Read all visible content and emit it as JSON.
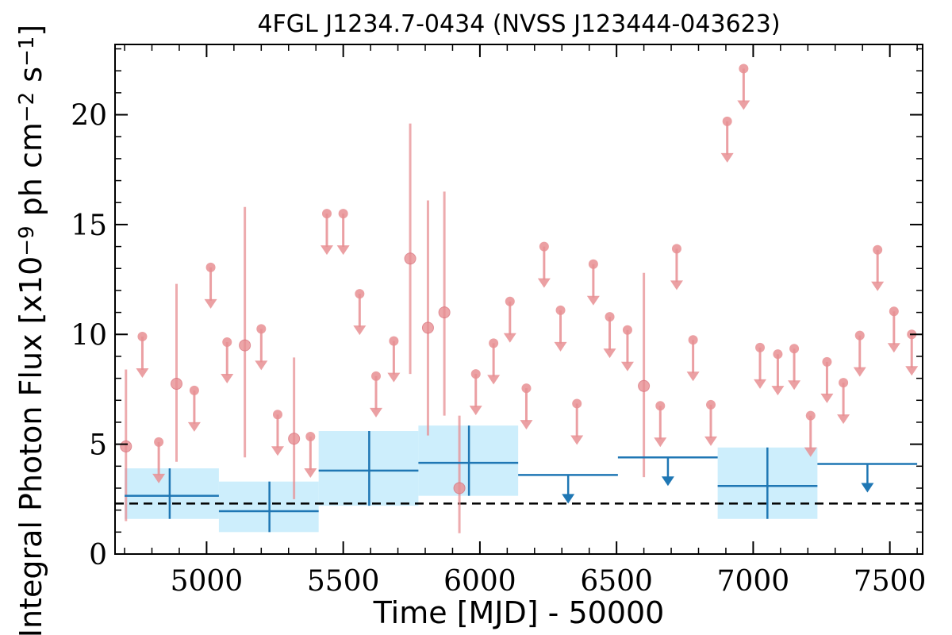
{
  "chart_data": {
    "type": "scatter",
    "title": "4FGL J1234.7-0434 (NVSS J123444-043623)",
    "xlabel": "Time [MJD] - 50000",
    "ylabel_base": "Integral Photon Flux [x10",
    "ylabel_exp1": "−9",
    "ylabel_mid": " ph cm",
    "ylabel_exp2": "−2",
    "ylabel_mid2": " s",
    "ylabel_exp3": "−1",
    "ylabel_end": "]",
    "xlim": [
      4665,
      7620
    ],
    "ylim": [
      0,
      23.2
    ],
    "xticks": [
      5000,
      5500,
      6000,
      6500,
      7000,
      7500
    ],
    "yticks": [
      0,
      5,
      10,
      15,
      20
    ],
    "baseline": 2.3,
    "colors": {
      "short_bins": "#e88f93",
      "long_bins": "#1f77b4",
      "long_bins_band": "#cdeefc",
      "baseline": "#000000"
    },
    "long_bins": [
      {
        "x0": 4700,
        "x1": 5045,
        "x": 4865,
        "y": 2.65,
        "ylo": 1.6,
        "yhi": 3.9
      },
      {
        "x0": 5045,
        "x1": 5410,
        "x": 5230,
        "y": 1.95,
        "ylo": 1.0,
        "yhi": 3.3
      },
      {
        "x0": 5410,
        "x1": 5775,
        "x": 5595,
        "y": 3.8,
        "ylo": 2.2,
        "yhi": 5.6
      },
      {
        "x0": 5775,
        "x1": 6140,
        "x": 5960,
        "y": 4.15,
        "ylo": 2.65,
        "yhi": 5.85
      },
      {
        "x0": 6140,
        "x1": 6505,
        "x": 6323,
        "y": 3.6,
        "upper_limit": true
      },
      {
        "x0": 6505,
        "x1": 6870,
        "x": 6688,
        "y": 4.4,
        "upper_limit": true
      },
      {
        "x0": 6870,
        "x1": 7235,
        "x": 7052,
        "y": 3.1,
        "ylo": 1.6,
        "yhi": 4.85
      },
      {
        "x0": 7235,
        "x1": 7600,
        "x": 7418,
        "y": 4.1,
        "upper_limit": true
      }
    ],
    "short_bins": [
      {
        "x": 4705,
        "y": 4.9,
        "ylo": 1.5,
        "yhi": 8.4
      },
      {
        "x": 4765,
        "y": 9.9,
        "upper_limit": true
      },
      {
        "x": 4825,
        "y": 5.1,
        "upper_limit": true
      },
      {
        "x": 4890,
        "y": 7.75,
        "ylo": 4.2,
        "yhi": 12.3
      },
      {
        "x": 4955,
        "y": 7.45,
        "upper_limit": true
      },
      {
        "x": 5015,
        "y": 13.05,
        "upper_limit": true
      },
      {
        "x": 5075,
        "y": 9.65,
        "upper_limit": true
      },
      {
        "x": 5140,
        "y": 9.5,
        "ylo": 4.4,
        "yhi": 15.8
      },
      {
        "x": 5200,
        "y": 10.25,
        "upper_limit": true
      },
      {
        "x": 5260,
        "y": 6.35,
        "upper_limit": true
      },
      {
        "x": 5320,
        "y": 5.25,
        "ylo": 2.5,
        "yhi": 8.95
      },
      {
        "x": 5380,
        "y": 5.35,
        "upper_limit": true
      },
      {
        "x": 5440,
        "y": 15.5,
        "upper_limit": true
      },
      {
        "x": 5500,
        "y": 15.5,
        "upper_limit": true
      },
      {
        "x": 5560,
        "y": 11.85,
        "upper_limit": true
      },
      {
        "x": 5620,
        "y": 8.1,
        "upper_limit": true
      },
      {
        "x": 5685,
        "y": 9.7,
        "upper_limit": true
      },
      {
        "x": 5745,
        "y": 13.45,
        "ylo": 8.2,
        "yhi": 19.6
      },
      {
        "x": 5810,
        "y": 10.3,
        "ylo": 5.4,
        "yhi": 16.1
      },
      {
        "x": 5870,
        "y": 11.0,
        "ylo": 6.3,
        "yhi": 16.5
      },
      {
        "x": 5925,
        "y": 3.0,
        "ylo": 0.95,
        "yhi": 6.3
      },
      {
        "x": 5985,
        "y": 8.2,
        "upper_limit": true
      },
      {
        "x": 6050,
        "y": 9.6,
        "upper_limit": true
      },
      {
        "x": 6110,
        "y": 11.5,
        "upper_limit": true
      },
      {
        "x": 6170,
        "y": 7.55,
        "upper_limit": true
      },
      {
        "x": 6235,
        "y": 14.0,
        "upper_limit": true
      },
      {
        "x": 6295,
        "y": 11.1,
        "upper_limit": true
      },
      {
        "x": 6355,
        "y": 6.85,
        "upper_limit": true
      },
      {
        "x": 6415,
        "y": 13.2,
        "upper_limit": true
      },
      {
        "x": 6475,
        "y": 10.8,
        "upper_limit": true
      },
      {
        "x": 6540,
        "y": 10.2,
        "upper_limit": true
      },
      {
        "x": 6600,
        "y": 7.65,
        "ylo": 3.5,
        "yhi": 12.8
      },
      {
        "x": 6660,
        "y": 6.75,
        "upper_limit": true
      },
      {
        "x": 6720,
        "y": 13.9,
        "upper_limit": true
      },
      {
        "x": 6780,
        "y": 9.75,
        "upper_limit": true
      },
      {
        "x": 6845,
        "y": 6.8,
        "upper_limit": true
      },
      {
        "x": 6905,
        "y": 19.7,
        "upper_limit": true
      },
      {
        "x": 6965,
        "y": 22.1,
        "upper_limit": true
      },
      {
        "x": 7025,
        "y": 9.4,
        "upper_limit": true
      },
      {
        "x": 7090,
        "y": 9.1,
        "upper_limit": true
      },
      {
        "x": 7150,
        "y": 9.35,
        "upper_limit": true
      },
      {
        "x": 7210,
        "y": 6.3,
        "upper_limit": true
      },
      {
        "x": 7270,
        "y": 8.75,
        "upper_limit": true
      },
      {
        "x": 7330,
        "y": 7.8,
        "upper_limit": true
      },
      {
        "x": 7390,
        "y": 9.95,
        "upper_limit": true
      },
      {
        "x": 7455,
        "y": 13.85,
        "upper_limit": true
      },
      {
        "x": 7515,
        "y": 11.05,
        "upper_limit": true
      },
      {
        "x": 7580,
        "y": 10.0,
        "upper_limit": true
      }
    ]
  }
}
